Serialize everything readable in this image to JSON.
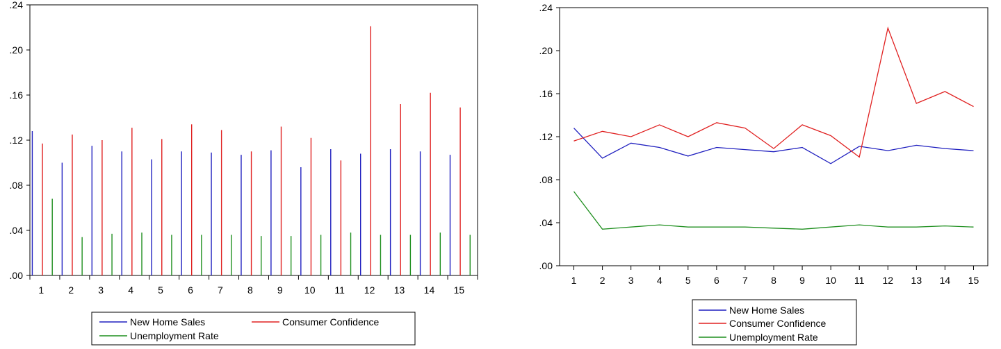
{
  "chart_data": [
    {
      "type": "bar",
      "categories": [
        "1",
        "2",
        "3",
        "4",
        "5",
        "6",
        "7",
        "8",
        "9",
        "10",
        "11",
        "12",
        "13",
        "14",
        "15"
      ],
      "series": [
        {
          "name": "New Home Sales",
          "color": "#1f1fbf",
          "values": [
            0.128,
            0.1,
            0.115,
            0.11,
            0.103,
            0.11,
            0.109,
            0.107,
            0.111,
            0.096,
            0.112,
            0.108,
            0.112,
            0.11,
            0.107
          ]
        },
        {
          "name": "Consumer Confidence",
          "color": "#e02020",
          "values": [
            0.117,
            0.125,
            0.12,
            0.131,
            0.121,
            0.134,
            0.129,
            0.11,
            0.132,
            0.122,
            0.102,
            0.221,
            0.152,
            0.162,
            0.149
          ]
        },
        {
          "name": "Unemployment Rate",
          "color": "#1f8f1f",
          "values": [
            0.068,
            0.034,
            0.037,
            0.038,
            0.036,
            0.036,
            0.036,
            0.035,
            0.035,
            0.036,
            0.038,
            0.036,
            0.036,
            0.038,
            0.036
          ]
        }
      ],
      "ylim": [
        0,
        0.24
      ],
      "yticks": [
        ".00",
        ".04",
        ".08",
        ".12",
        ".16",
        ".20",
        ".24"
      ],
      "legend_position": "bottom-center",
      "grid": false
    },
    {
      "type": "line",
      "categories": [
        "1",
        "2",
        "3",
        "4",
        "5",
        "6",
        "7",
        "8",
        "9",
        "10",
        "11",
        "12",
        "13",
        "14",
        "15"
      ],
      "series": [
        {
          "name": "New Home Sales",
          "color": "#1f1fbf",
          "values": [
            0.128,
            0.1,
            0.114,
            0.11,
            0.102,
            0.11,
            0.108,
            0.106,
            0.11,
            0.095,
            0.111,
            0.107,
            0.112,
            0.109,
            0.107
          ]
        },
        {
          "name": "Consumer Confidence",
          "color": "#e02020",
          "values": [
            0.116,
            0.125,
            0.12,
            0.131,
            0.12,
            0.133,
            0.128,
            0.109,
            0.131,
            0.121,
            0.101,
            0.221,
            0.151,
            0.162,
            0.148
          ]
        },
        {
          "name": "Unemployment Rate",
          "color": "#1f8f1f",
          "values": [
            0.069,
            0.034,
            0.036,
            0.038,
            0.036,
            0.036,
            0.036,
            0.035,
            0.034,
            0.036,
            0.038,
            0.036,
            0.036,
            0.037,
            0.036
          ]
        }
      ],
      "ylim": [
        0,
        0.24
      ],
      "yticks": [
        ".00",
        ".04",
        ".08",
        ".12",
        ".16",
        ".20",
        ".24"
      ],
      "legend_position": "bottom-center",
      "grid": false
    }
  ]
}
